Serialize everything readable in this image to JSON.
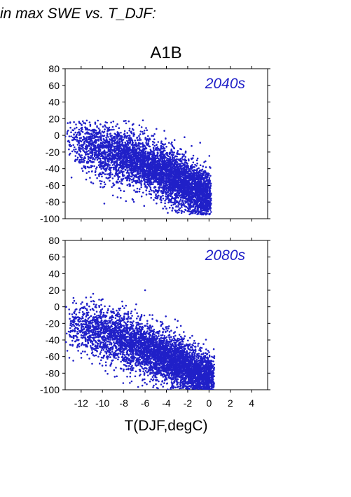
{
  "heading": "in max SWE vs. T_DJF:",
  "colors": {
    "points": "#2020c8",
    "period_label": "#2020c8",
    "frame": "#000000"
  },
  "chart_data": {
    "type": "scatter",
    "title": "A1B",
    "xlabel": "T(DJF,degC)",
    "xlim": [
      -13.5,
      5.5
    ],
    "ylim": [
      -100,
      80
    ],
    "xticks": [
      -12,
      -10,
      -8,
      -6,
      -4,
      -2,
      0,
      2,
      4
    ],
    "yticks": [
      -100,
      -80,
      -60,
      -40,
      -20,
      0,
      20,
      40,
      60,
      80
    ],
    "panels": [
      {
        "label": "2040s",
        "label_position": "top-right",
        "cloud": {
          "n": 5200,
          "x_range": [
            -13.5,
            0.2
          ],
          "trend_anchor_points": [
            [
              -12,
              -8
            ],
            [
              -8,
              -25
            ],
            [
              -4,
              -45
            ],
            [
              -1,
              -68
            ]
          ],
          "y_spread": 16,
          "y_clip": [
            -95,
            18
          ],
          "extreme_points": [
            [
              -13.3,
              4
            ],
            [
              -6.2,
              18
            ],
            [
              -0.3,
              -95
            ],
            [
              0.1,
              -80
            ]
          ]
        }
      },
      {
        "label": "2080s",
        "label_position": "top-right",
        "cloud": {
          "n": 5200,
          "x_range": [
            -13.5,
            0.5
          ],
          "trend_anchor_points": [
            [
              -12,
              -25
            ],
            [
              -8,
              -40
            ],
            [
              -4,
              -62
            ],
            [
              -1,
              -82
            ]
          ],
          "y_spread": 16,
          "y_clip": [
            -100,
            20
          ],
          "extreme_points": [
            [
              -13.4,
              0
            ],
            [
              -6,
              20
            ],
            [
              0.4,
              -95
            ],
            [
              -11.8,
              -10
            ]
          ]
        }
      }
    ]
  }
}
